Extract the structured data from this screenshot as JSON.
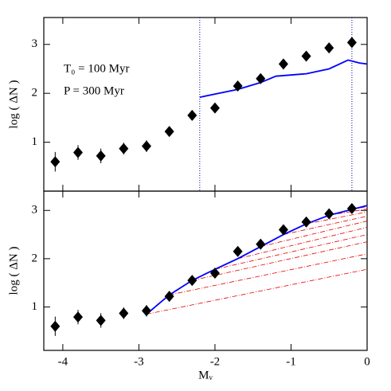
{
  "chart_data": [
    {
      "type": "scatter",
      "ylabel": "log ( ΔN )",
      "annotations": [
        "T₀  =  100 Myr",
        "P  =  300 Myr"
      ],
      "x": [
        -4.1,
        -3.8,
        -3.5,
        -3.2,
        -2.9,
        -2.6,
        -2.3,
        -2.0,
        -1.7,
        -1.4,
        -1.1,
        -0.8,
        -0.5,
        -0.2
      ],
      "values": [
        0.6,
        0.79,
        0.72,
        0.87,
        0.92,
        1.22,
        1.55,
        1.7,
        2.15,
        2.3,
        2.6,
        2.76,
        2.93,
        3.04
      ],
      "errors": [
        0.2,
        0.15,
        0.15,
        0.12,
        0.12,
        0.08,
        0.07,
        0.06,
        0.06,
        0.05,
        0.05,
        0.05,
        0.05,
        0.05
      ],
      "color": "#000000",
      "xlim": [
        -4.25,
        0
      ],
      "xticks": [
        -4,
        -3,
        -2,
        -1,
        0
      ],
      "ylim": [
        0,
        3.55
      ],
      "yticks": [
        1,
        2,
        3
      ],
      "model": {
        "color": "#0000ff",
        "x": [
          -2.2,
          -1.7,
          -1.4,
          -1.2,
          -0.8,
          -0.5,
          -0.25,
          -0.1,
          0
        ],
        "values": [
          1.92,
          2.08,
          2.22,
          2.35,
          2.4,
          2.5,
          2.68,
          2.62,
          2.6
        ]
      },
      "vlines": {
        "color": "#0000aa",
        "x": [
          -2.2,
          -0.2
        ]
      }
    },
    {
      "type": "scatter",
      "ylabel": "log ( ΔN )",
      "xlabel": "Mᵥ",
      "x": [
        -4.1,
        -3.8,
        -3.5,
        -3.2,
        -2.9,
        -2.6,
        -2.3,
        -2.0,
        -1.7,
        -1.4,
        -1.1,
        -0.8,
        -0.5,
        -0.2
      ],
      "values": [
        0.6,
        0.79,
        0.72,
        0.87,
        0.92,
        1.22,
        1.55,
        1.7,
        2.15,
        2.3,
        2.6,
        2.76,
        2.93,
        3.04
      ],
      "errors": [
        0.2,
        0.15,
        0.15,
        0.12,
        0.12,
        0.08,
        0.07,
        0.06,
        0.06,
        0.05,
        0.05,
        0.05,
        0.05,
        0.05
      ],
      "color": "#000000",
      "xlim": [
        -4.25,
        0
      ],
      "xticks": [
        -4,
        -3,
        -2,
        -1,
        0
      ],
      "ylim": [
        0.1,
        3.4
      ],
      "yticks": [
        1,
        2,
        3
      ],
      "model": {
        "color": "#0000ff",
        "x": [
          -2.9,
          -2.6,
          -2.3,
          -2.0,
          -1.7,
          -1.4,
          -1.1,
          -0.8,
          -0.5,
          -0.2,
          0
        ],
        "values": [
          0.85,
          1.25,
          1.55,
          1.78,
          2.0,
          2.25,
          2.5,
          2.72,
          2.9,
          3.02,
          3.1
        ]
      },
      "fan": {
        "color": "#e00000",
        "series": [
          {
            "x": [
              -2.9,
              0
            ],
            "values": [
              0.85,
              1.78
            ]
          },
          {
            "x": [
              -2.6,
              0
            ],
            "values": [
              1.25,
              2.1
            ]
          },
          {
            "x": [
              -2.3,
              0
            ],
            "values": [
              1.55,
              2.35
            ]
          },
          {
            "x": [
              -2.0,
              0
            ],
            "values": [
              1.78,
              2.5
            ]
          },
          {
            "x": [
              -1.7,
              0
            ],
            "values": [
              2.0,
              2.65
            ]
          },
          {
            "x": [
              -1.4,
              0
            ],
            "values": [
              2.25,
              2.78
            ]
          },
          {
            "x": [
              -1.1,
              0
            ],
            "values": [
              2.5,
              2.88
            ]
          },
          {
            "x": [
              -0.8,
              0
            ],
            "values": [
              2.72,
              2.97
            ]
          },
          {
            "x": [
              -0.5,
              0
            ],
            "values": [
              2.9,
              3.03
            ]
          },
          {
            "x": [
              -0.2,
              0
            ],
            "values": [
              3.02,
              3.08
            ]
          }
        ]
      }
    }
  ]
}
